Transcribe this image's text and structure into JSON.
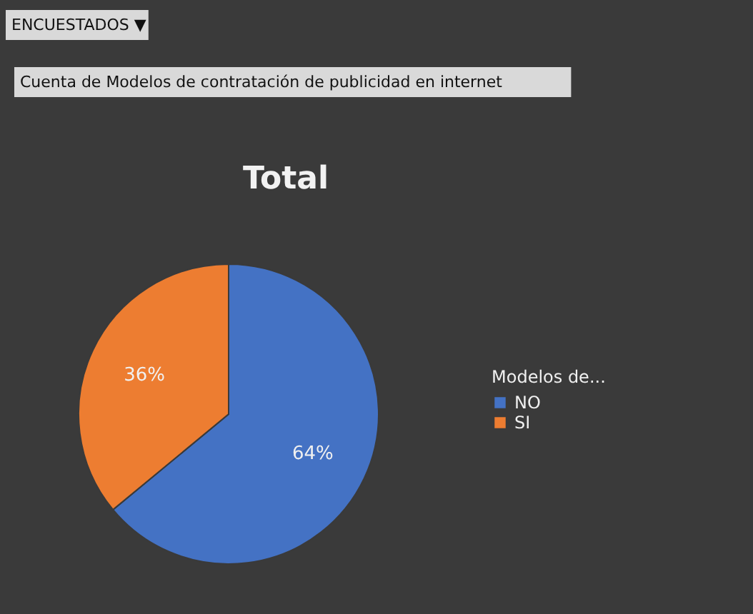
{
  "chart_data": {
    "type": "pie",
    "title": "Total",
    "annotations": [
      "ENCUESTADOS ▼",
      "Cuenta de Modelos de contratación de publicidad en internet"
    ],
    "categories": [
      "NO",
      "SI"
    ],
    "values": [
      64,
      36
    ],
    "colors": [
      "#4472c4",
      "#ed7d31"
    ],
    "legend_title": "Modelos de...",
    "legend": "right",
    "value_labels": [
      "64%",
      "36%"
    ]
  }
}
